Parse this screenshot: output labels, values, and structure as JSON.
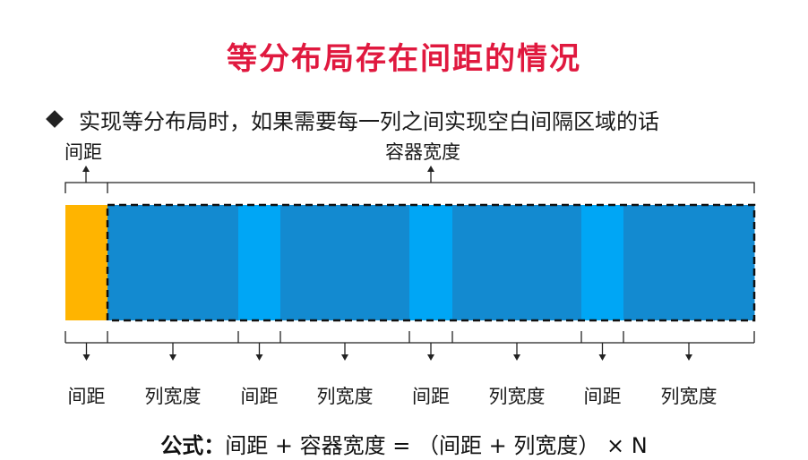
{
  "title": "等分布局存在间距的情况",
  "bullet": "实现等分布局时，如果需要每一列之间实现空白间隔区域的话",
  "top_labels": {
    "gap": "间距",
    "container": "容器宽度"
  },
  "segments": [
    {
      "label": "间距",
      "kind": "gap"
    },
    {
      "label": "列宽度",
      "kind": "column"
    },
    {
      "label": "间距",
      "kind": "gap"
    },
    {
      "label": "列宽度",
      "kind": "column"
    },
    {
      "label": "间距",
      "kind": "gap"
    },
    {
      "label": "列宽度",
      "kind": "column"
    },
    {
      "label": "间距",
      "kind": "gap"
    },
    {
      "label": "列宽度",
      "kind": "column"
    }
  ],
  "formula": {
    "lead": "公式：",
    "expression": "间距 + 容器宽度 = （间距 + 列宽度） × N"
  },
  "colors": {
    "title": "#e0193f",
    "outer_gap": "#ffb400",
    "column": "#138ad0",
    "inner_gap": "#00a6f5",
    "border": "#111111"
  }
}
